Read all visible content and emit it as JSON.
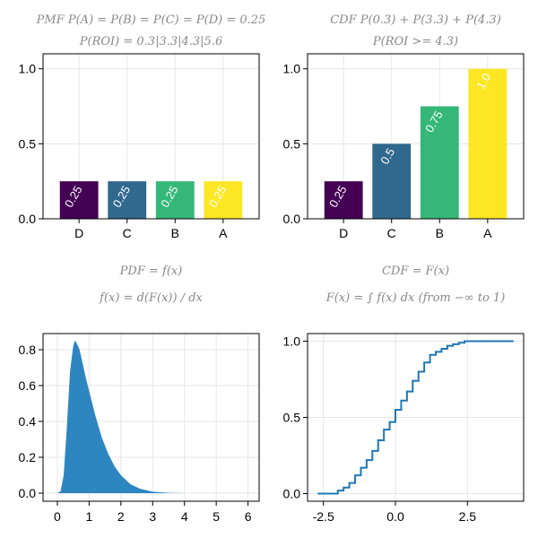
{
  "chart_data": [
    {
      "id": "pmf",
      "type": "bar",
      "title_lines": [
        "PMF P(A) = P(B) = P(C) = P(D) = 0.25",
        "P(ROI) = 0.3|3.3|4.3|5.6"
      ],
      "categories": [
        "D",
        "C",
        "B",
        "A"
      ],
      "values": [
        0.25,
        0.25,
        0.25,
        0.25
      ],
      "bar_labels": [
        "0.25",
        "0.25",
        "0.25",
        "0.25"
      ],
      "colors": [
        "#440154",
        "#31688e",
        "#35b779",
        "#fde725"
      ],
      "ylim": [
        0,
        1.1
      ],
      "yticks": [
        0.0,
        0.5,
        1.0
      ],
      "ytick_labels": [
        "0.0",
        "0.5",
        "1.0"
      ],
      "grid": true
    },
    {
      "id": "cdf_bar",
      "type": "bar",
      "title_lines": [
        "CDF P(0.3) + P(3.3) + P(4.3)",
        "P(ROI >= 4.3)"
      ],
      "categories": [
        "D",
        "C",
        "B",
        "A"
      ],
      "values": [
        0.25,
        0.5,
        0.75,
        1.0
      ],
      "bar_labels": [
        "0.25",
        "0.5",
        "0.75",
        "1.0"
      ],
      "colors": [
        "#440154",
        "#31688e",
        "#35b779",
        "#fde725"
      ],
      "ylim": [
        0,
        1.1
      ],
      "yticks": [
        0.0,
        0.5,
        1.0
      ],
      "ytick_labels": [
        "0.0",
        "0.5",
        "1.0"
      ],
      "grid": true
    },
    {
      "id": "pdf",
      "type": "area",
      "title_lines": [
        "PDF = f(x)",
        "f(x) = d(F(x)) / dx"
      ],
      "color": "#2e86c1",
      "x": [
        0,
        0.1,
        0.2,
        0.3,
        0.4,
        0.5,
        0.55,
        0.6,
        0.7,
        0.8,
        0.9,
        1.0,
        1.2,
        1.4,
        1.6,
        1.8,
        2.0,
        2.3,
        2.6,
        3.0,
        3.5,
        4.0
      ],
      "y": [
        0,
        0.01,
        0.1,
        0.37,
        0.68,
        0.82,
        0.85,
        0.84,
        0.8,
        0.72,
        0.64,
        0.57,
        0.43,
        0.31,
        0.22,
        0.15,
        0.1,
        0.05,
        0.025,
        0.008,
        0.002,
        0
      ],
      "xlim": [
        -0.45,
        6.35
      ],
      "ylim": [
        -0.045,
        0.89
      ],
      "xticks": [
        0,
        1,
        2,
        3,
        4,
        5,
        6
      ],
      "xtick_labels": [
        "0",
        "1",
        "2",
        "3",
        "4",
        "5",
        "6"
      ],
      "yticks": [
        0.0,
        0.2,
        0.4,
        0.6,
        0.8
      ],
      "ytick_labels": [
        "0.0",
        "0.2",
        "0.4",
        "0.6",
        "0.8"
      ],
      "grid": true
    },
    {
      "id": "ecdf",
      "type": "line",
      "title_lines": [
        "CDF = F(x)",
        "F(x) = ∫ f(x) dx (from −∞ to 1)"
      ],
      "color": "#1f77b4",
      "x": [
        -2.7,
        -2.2,
        -2.0,
        -1.8,
        -1.6,
        -1.4,
        -1.2,
        -1.0,
        -0.8,
        -0.6,
        -0.4,
        -0.2,
        0.0,
        0.2,
        0.4,
        0.6,
        0.8,
        1.0,
        1.2,
        1.4,
        1.6,
        1.8,
        2.0,
        2.2,
        2.4,
        3.0,
        4.1
      ],
      "y": [
        0.0,
        0.0,
        0.02,
        0.04,
        0.07,
        0.12,
        0.17,
        0.22,
        0.28,
        0.35,
        0.42,
        0.47,
        0.55,
        0.61,
        0.67,
        0.74,
        0.8,
        0.86,
        0.91,
        0.93,
        0.95,
        0.97,
        0.98,
        0.99,
        1.0,
        1.0,
        1.0
      ],
      "xlim": [
        -3.05,
        4.45
      ],
      "ylim": [
        -0.05,
        1.05
      ],
      "xticks": [
        -2.5,
        0.0,
        2.5
      ],
      "xtick_labels": [
        "-2.5",
        "0.0",
        "2.5"
      ],
      "yticks": [
        0.0,
        0.5,
        1.0
      ],
      "ytick_labels": [
        "0.0",
        "0.5",
        "1.0"
      ],
      "grid": true
    }
  ]
}
